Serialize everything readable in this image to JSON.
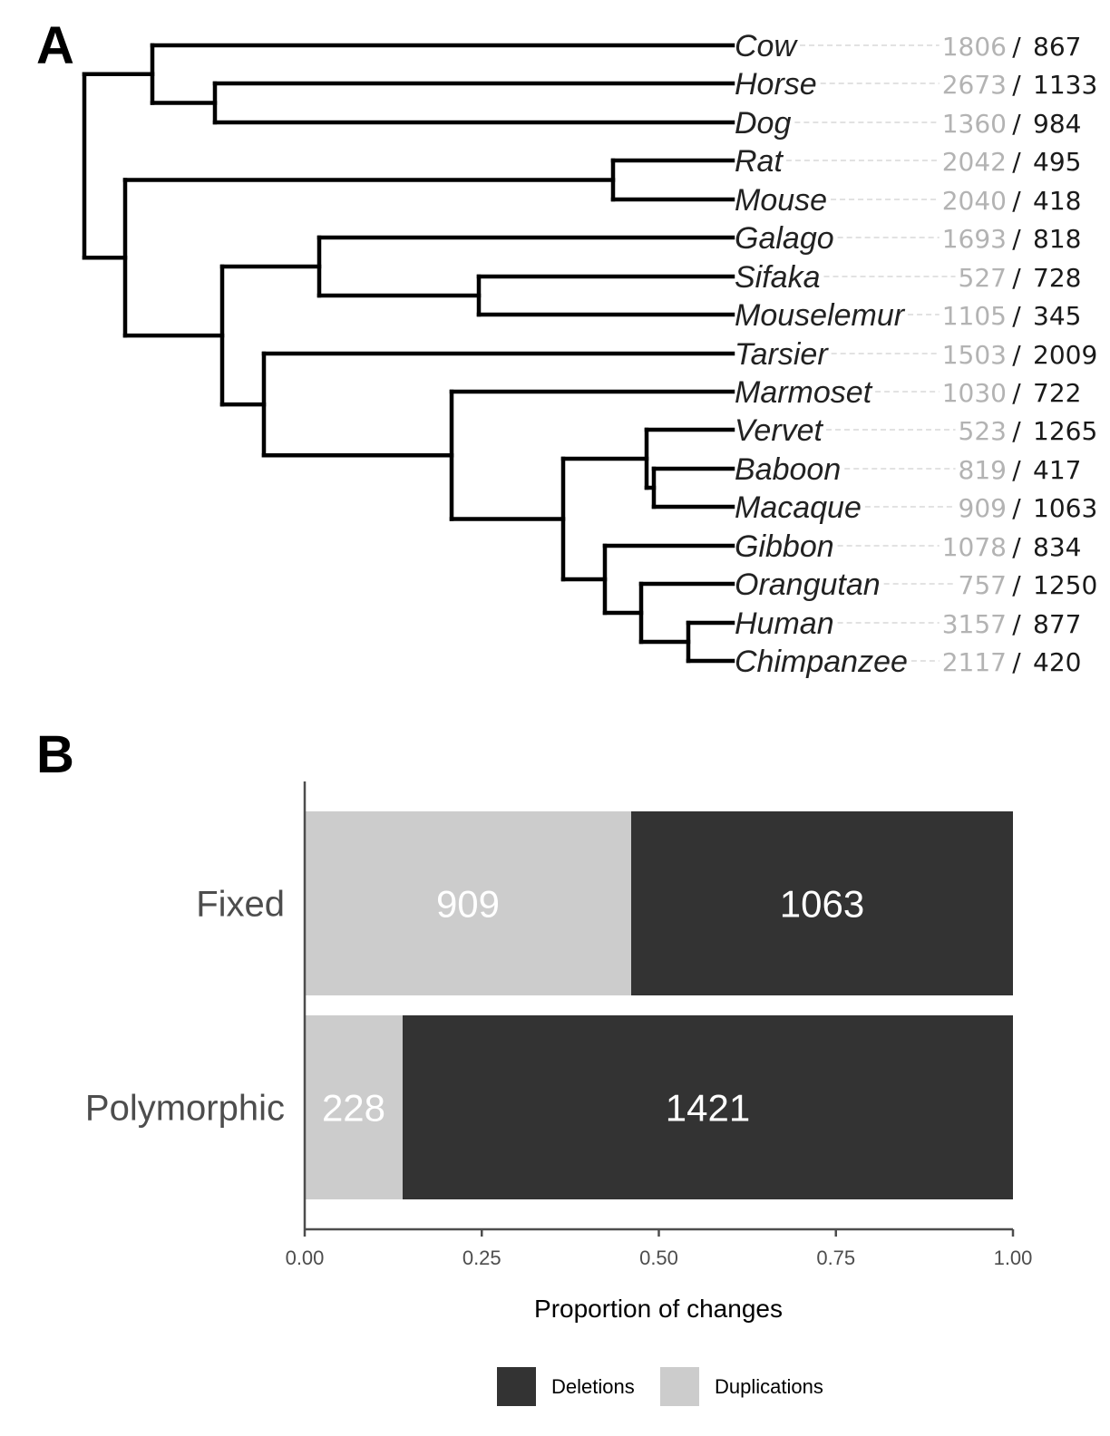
{
  "panels": {
    "a_label": "A",
    "b_label": "B"
  },
  "tree": {
    "tips": [
      {
        "name": "Cow",
        "dup": "1806",
        "del": "867"
      },
      {
        "name": "Horse",
        "dup": "2673",
        "del": "1133"
      },
      {
        "name": "Dog",
        "dup": "1360",
        "del": "984"
      },
      {
        "name": "Rat",
        "dup": "2042",
        "del": "495"
      },
      {
        "name": "Mouse",
        "dup": "2040",
        "del": "418"
      },
      {
        "name": "Galago",
        "dup": "1693",
        "del": "818"
      },
      {
        "name": "Sifaka",
        "dup": "527",
        "del": "728"
      },
      {
        "name": "Mouselemur",
        "dup": "1105",
        "del": "345"
      },
      {
        "name": "Tarsier",
        "dup": "1503",
        "del": "2009"
      },
      {
        "name": "Marmoset",
        "dup": "1030",
        "del": "722"
      },
      {
        "name": "Vervet",
        "dup": "523",
        "del": "1265"
      },
      {
        "name": "Baboon",
        "dup": "819",
        "del": "417"
      },
      {
        "name": "Macaque",
        "dup": "909",
        "del": "1063"
      },
      {
        "name": "Gibbon",
        "dup": "1078",
        "del": "834"
      },
      {
        "name": "Orangutan",
        "dup": "757",
        "del": "1250"
      },
      {
        "name": "Human",
        "dup": "3157",
        "del": "877"
      },
      {
        "name": "Chimpanzee",
        "dup": "2117",
        "del": "420"
      }
    ],
    "separator": "/",
    "colors": {
      "branch": "#000000",
      "dup_text": "#b3b3b3",
      "del_text": "#1a1a1a",
      "leader": "#d0d0d0"
    }
  },
  "chart_data": {
    "type": "bar",
    "orientation": "horizontal",
    "stacked": true,
    "normalized": true,
    "categories": [
      "Fixed",
      "Polymorphic"
    ],
    "series": [
      {
        "name": "Duplications",
        "values": [
          909,
          228
        ],
        "color": "#cccccc",
        "label_color": "#ffffff"
      },
      {
        "name": "Deletions",
        "values": [
          1063,
          1421
        ],
        "color": "#333333",
        "label_color": "#ffffff"
      }
    ],
    "xlabel": "Proportion of changes",
    "xlim": [
      0,
      1
    ],
    "xticks": [
      "0.00",
      "0.25",
      "0.50",
      "0.75",
      "1.00"
    ],
    "legend": {
      "position": "bottom",
      "entries": [
        "Deletions",
        "Duplications"
      ]
    },
    "grid": false
  }
}
